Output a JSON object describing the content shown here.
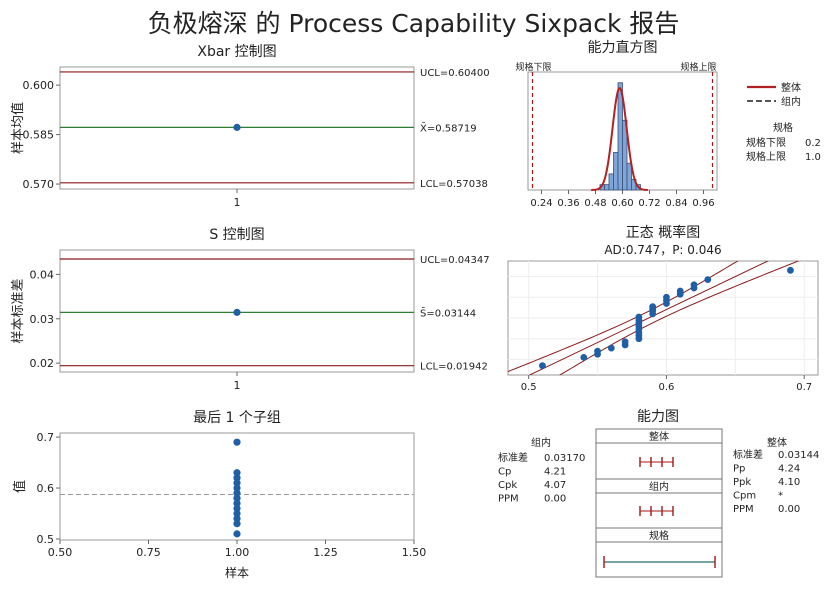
{
  "title": "负极熔深 的 Process Capability Sixpack 报告",
  "colors": {
    "limit_line": "#8b1a1a",
    "center_line": "#2e7d32",
    "point": "#1f5fa6",
    "bar_fill": "#7ea6d8",
    "bar_stroke": "#3a4f7a",
    "overall_curve": "#b22222",
    "within_curve": "#555555",
    "spec_line": "#a01818"
  },
  "chart_data": [
    {
      "id": "xbar",
      "type": "scatter",
      "title": "Xbar 控制图",
      "ylabel": "样本均值",
      "xticks": [
        "1"
      ],
      "yticks": [
        "0.600",
        "0.585",
        "0.570"
      ],
      "ytick_values": [
        0.6,
        0.585,
        0.57
      ],
      "ylim": [
        0.5685,
        0.6055
      ],
      "ucl_label": "UCL=0.60400",
      "ucl": 0.604,
      "center_label": "X̄=0.58719",
      "center": 0.58719,
      "lcl_label": "LCL=0.57038",
      "lcl": 0.57038,
      "points": [
        0.58719
      ]
    },
    {
      "id": "s",
      "type": "scatter",
      "title": "S 控制图",
      "ylabel": "样本标准差",
      "xticks": [
        "1"
      ],
      "yticks": [
        "0.04",
        "0.03",
        "0.02"
      ],
      "ytick_values": [
        0.04,
        0.03,
        0.02
      ],
      "ylim": [
        0.018,
        0.0455
      ],
      "ucl_label": "UCL=0.04347",
      "ucl": 0.04347,
      "center_label": "S̄=0.03144",
      "center": 0.03144,
      "lcl_label": "LCL=0.01942",
      "lcl": 0.01942,
      "points": [
        0.03144
      ]
    },
    {
      "id": "last",
      "type": "scatter",
      "title": "最后 1 个子组",
      "xlabel": "样本",
      "ylabel": "值",
      "xticks": [
        "0.50",
        "0.75",
        "1.00",
        "1.25",
        "1.50"
      ],
      "xtick_values": [
        0.5,
        0.75,
        1.0,
        1.25,
        1.5
      ],
      "yticks": [
        "0.7",
        "0.6",
        "0.5"
      ],
      "ytick_values": [
        0.7,
        0.6,
        0.5
      ],
      "xlim": [
        0.5,
        1.5
      ],
      "ylim": [
        0.498,
        0.708
      ],
      "mean": 0.58719,
      "x": [
        1,
        1,
        1,
        1,
        1,
        1,
        1,
        1,
        1,
        1,
        1,
        1,
        1
      ],
      "y": [
        0.69,
        0.63,
        0.62,
        0.61,
        0.6,
        0.59,
        0.58,
        0.57,
        0.56,
        0.55,
        0.54,
        0.53,
        0.51
      ]
    },
    {
      "id": "hist",
      "type": "bar",
      "title": "能力直方图",
      "lsl_label": "规格下限",
      "usl_label": "规格上限",
      "lsl": 0.2,
      "usl": 1.0,
      "xticks": [
        "0.24",
        "0.36",
        "0.48",
        "0.60",
        "0.72",
        "0.84",
        "0.96"
      ],
      "xtick_values": [
        0.24,
        0.36,
        0.48,
        0.6,
        0.72,
        0.84,
        0.96
      ],
      "xlim": [
        0.18,
        1.02
      ],
      "ylim": [
        0,
        22
      ],
      "bins": [
        {
          "start": 0.5,
          "end": 0.52,
          "count": 1
        },
        {
          "start": 0.52,
          "end": 0.54,
          "count": 1
        },
        {
          "start": 0.54,
          "end": 0.56,
          "count": 3
        },
        {
          "start": 0.56,
          "end": 0.58,
          "count": 7
        },
        {
          "start": 0.58,
          "end": 0.6,
          "count": 20
        },
        {
          "start": 0.6,
          "end": 0.62,
          "count": 13
        },
        {
          "start": 0.62,
          "end": 0.64,
          "count": 5
        },
        {
          "start": 0.64,
          "end": 0.66,
          "count": 2
        },
        {
          "start": 0.66,
          "end": 0.68,
          "count": 1
        }
      ],
      "curve_peak": 19,
      "overall_sd": 0.03144,
      "within_sd": 0.0317,
      "mean": 0.58719
    },
    {
      "id": "normprob",
      "type": "scatter",
      "title": "正态 概率图",
      "subtitle": "AD:0.747，P: 0.046",
      "xticks": [
        "0.5",
        "0.6",
        "0.7"
      ],
      "xtick_values": [
        0.5,
        0.6,
        0.7
      ],
      "xlim": [
        0.485,
        0.71
      ],
      "ylim": [
        -2.75,
        2.75
      ],
      "mean": 0.58719,
      "sd": 0.03144,
      "x": [
        0.51,
        0.54,
        0.55,
        0.55,
        0.56,
        0.57,
        0.57,
        0.58,
        0.58,
        0.58,
        0.58,
        0.58,
        0.58,
        0.58,
        0.58,
        0.59,
        0.59,
        0.59,
        0.59,
        0.6,
        0.6,
        0.6,
        0.61,
        0.61,
        0.62,
        0.62,
        0.63,
        0.69
      ],
      "z": [
        -2.3,
        -1.9,
        -1.75,
        -1.6,
        -1.45,
        -1.3,
        -1.15,
        -1.0,
        -0.85,
        -0.7,
        -0.55,
        -0.4,
        -0.25,
        -0.1,
        0.05,
        0.2,
        0.35,
        0.45,
        0.55,
        0.7,
        0.85,
        1.0,
        1.15,
        1.3,
        1.45,
        1.6,
        1.85,
        2.3
      ]
    },
    {
      "id": "capplot",
      "type": "table",
      "title": "能力图",
      "within_header": "组内",
      "overall_header": "整体",
      "spec_header": "规格",
      "within_stats": [
        {
          "label": "标准差",
          "value": "0.03170"
        },
        {
          "label": "Cp",
          "value": "4.21"
        },
        {
          "label": "Cpk",
          "value": "4.07"
        },
        {
          "label": "PPM",
          "value": "0.00"
        }
      ],
      "overall_stats": [
        {
          "label": "标准差",
          "value": "0.03144"
        },
        {
          "label": "Pp",
          "value": "4.24"
        },
        {
          "label": "Ppk",
          "value": "4.10"
        },
        {
          "label": "Cpm",
          "value": "*"
        },
        {
          "label": "PPM",
          "value": "0.00"
        }
      ]
    }
  ],
  "legend": {
    "overall": "整体",
    "within": "组内",
    "spec_title": "规格",
    "lsl_label": "规格下限",
    "lsl_value": "0.2",
    "usl_label": "规格上限",
    "usl_value": "1.0"
  }
}
